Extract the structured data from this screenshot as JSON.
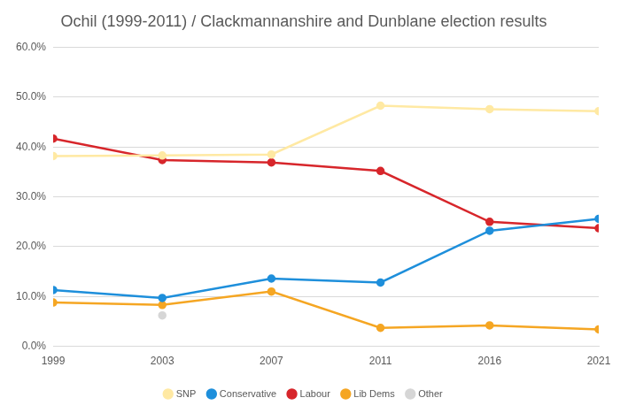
{
  "chart_data": {
    "type": "line",
    "title": "Ochil (1999-2011) / Clackmannanshire and Dunblane election results",
    "categories": [
      "1999",
      "2003",
      "2007",
      "2011",
      "2016",
      "2021"
    ],
    "series": [
      {
        "name": "SNP",
        "color": "#FFE9A3",
        "values": [
          38.2,
          38.3,
          38.5,
          48.3,
          47.6,
          47.2
        ]
      },
      {
        "name": "Conservative",
        "color": "#1E8FDB",
        "values": [
          11.3,
          9.7,
          13.6,
          12.8,
          23.2,
          25.6
        ]
      },
      {
        "name": "Labour",
        "color": "#D7262B",
        "values": [
          41.7,
          37.4,
          36.9,
          35.2,
          25.0,
          23.7
        ]
      },
      {
        "name": "Lib Dems",
        "color": "#F5A623",
        "values": [
          8.8,
          8.3,
          11.0,
          3.7,
          4.2,
          3.4
        ]
      },
      {
        "name": "Other",
        "color": "#D6D6D6",
        "values": [
          null,
          6.2,
          null,
          null,
          null,
          null
        ]
      }
    ],
    "ylim": [
      0,
      60
    ],
    "yticks": [
      {
        "value": 0,
        "label": "0.0%"
      },
      {
        "value": 10,
        "label": "10.0%"
      },
      {
        "value": 20,
        "label": "20.0%"
      },
      {
        "value": 30,
        "label": "30.0%"
      },
      {
        "value": 40,
        "label": "40.0%"
      },
      {
        "value": 50,
        "label": "50.0%"
      },
      {
        "value": 60,
        "label": "60.0%"
      }
    ],
    "grid": true,
    "legend": "bottom",
    "marker": "circle"
  }
}
